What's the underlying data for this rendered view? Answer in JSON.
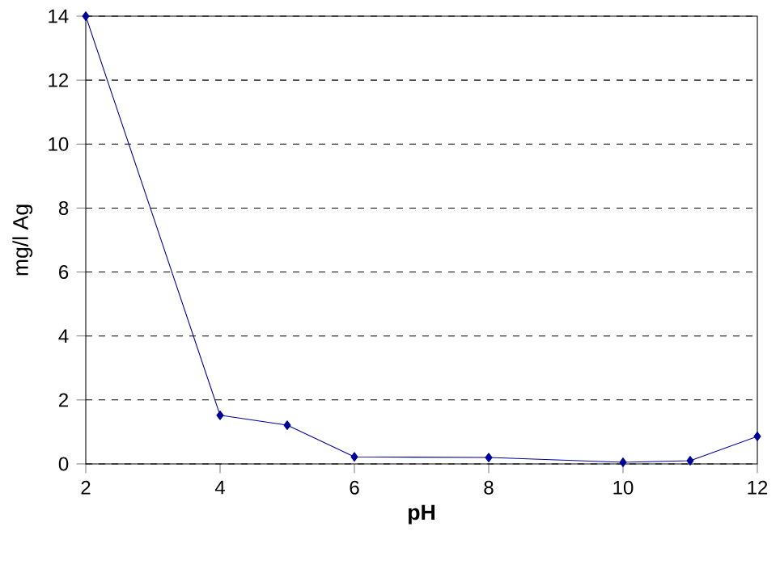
{
  "chart_data": {
    "type": "line",
    "xlabel": "pH",
    "ylabel": "mg/l Ag",
    "x": [
      2,
      4,
      5,
      6,
      8,
      10,
      11,
      12
    ],
    "series": [
      {
        "color": "#000099",
        "values": [
          14,
          1.52,
          1.21,
          0.22,
          0.2,
          0.05,
          0.1,
          0.86
        ]
      }
    ],
    "xlim": [
      2,
      12
    ],
    "xticks": [
      2,
      4,
      6,
      8,
      10,
      12
    ],
    "ylim": [
      0,
      14
    ],
    "yticks": [
      0,
      2,
      4,
      6,
      8,
      10,
      12,
      14
    ],
    "grid": "y",
    "marker": "diamond",
    "line_style": "solid"
  }
}
